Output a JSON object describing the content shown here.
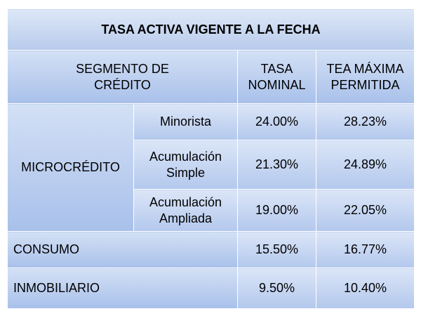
{
  "title": "TASA  ACTIVA VIGENTE A LA FECHA",
  "headers": {
    "segment_line1": "SEGMENTO DE",
    "segment_line2": "CRÉDITO",
    "rate_line1": "TASA",
    "rate_line2": "NOMINAL",
    "tea_line1": "TEA MÁXIMA",
    "tea_line2": "PERMITIDA"
  },
  "rows": [
    {
      "segment": "MICROCRÉDITO",
      "sub_line1": "Minorista",
      "sub_line2": "",
      "nominal": "24.00%",
      "tea": "28.23%"
    },
    {
      "segment": "",
      "sub_line1": "Acumulación",
      "sub_line2": "Simple",
      "nominal": "21.30%",
      "tea": "24.89%"
    },
    {
      "segment": "",
      "sub_line1": "Acumulación",
      "sub_line2": "Ampliada",
      "nominal": "19.00%",
      "tea": "22.05%"
    },
    {
      "segment": "CONSUMO",
      "sub_line1": "",
      "sub_line2": "",
      "nominal": "15.50%",
      "tea": "16.77%"
    },
    {
      "segment": "INMOBILIARIO",
      "sub_line1": "",
      "sub_line2": "",
      "nominal": "9.50%",
      "tea": "10.40%"
    }
  ],
  "colors": {
    "cell_top": "#d3e0f5",
    "cell_bottom": "#a8c0ea",
    "border": "#ffffff"
  }
}
